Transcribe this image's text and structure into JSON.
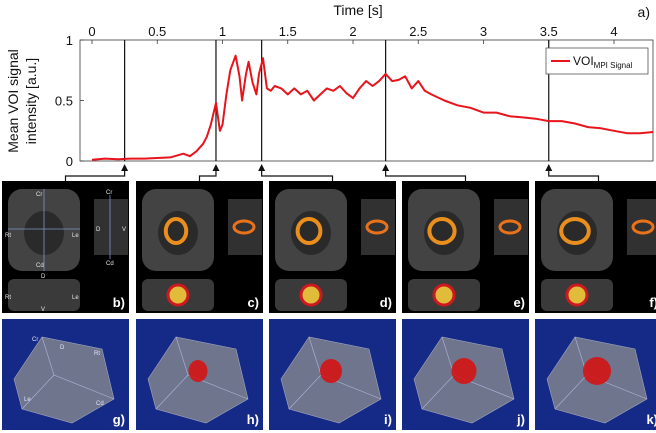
{
  "chart_data": {
    "type": "line",
    "panel_label": "a)",
    "xlabel": "Time [s]",
    "ylabel_lines": [
      "Mean VOI signal",
      "intensity [a.u.]"
    ],
    "xlim": [
      0,
      4.3
    ],
    "ylim": [
      0,
      1
    ],
    "x_ticks": [
      "0",
      "0.5",
      "1",
      "1.5",
      "2",
      "2.5",
      "3",
      "3.5",
      "4"
    ],
    "y_ticks": [
      "0",
      "0.5",
      "1"
    ],
    "legend": {
      "text": "VOI",
      "subscript": "MPI Signal",
      "position": "top-right"
    },
    "series": [
      {
        "name": "VOI MPI Signal",
        "color": "#e8141c",
        "x": [
          0,
          0.1,
          0.2,
          0.3,
          0.4,
          0.5,
          0.6,
          0.7,
          0.75,
          0.8,
          0.85,
          0.88,
          0.91,
          0.95,
          0.98,
          1.0,
          1.03,
          1.06,
          1.1,
          1.13,
          1.15,
          1.18,
          1.2,
          1.23,
          1.26,
          1.28,
          1.31,
          1.34,
          1.37,
          1.4,
          1.45,
          1.5,
          1.55,
          1.6,
          1.65,
          1.7,
          1.75,
          1.8,
          1.85,
          1.9,
          1.95,
          2.0,
          2.05,
          2.1,
          2.15,
          2.2,
          2.25,
          2.3,
          2.35,
          2.4,
          2.45,
          2.5,
          2.55,
          2.6,
          2.7,
          2.8,
          2.9,
          3.0,
          3.1,
          3.2,
          3.3,
          3.4,
          3.5,
          3.6,
          3.7,
          3.8,
          3.9,
          4.0,
          4.1,
          4.2,
          4.3
        ],
        "y": [
          0.01,
          0.02,
          0.015,
          0.02,
          0.02,
          0.025,
          0.03,
          0.06,
          0.04,
          0.08,
          0.14,
          0.2,
          0.3,
          0.48,
          0.25,
          0.3,
          0.55,
          0.75,
          0.87,
          0.7,
          0.5,
          0.72,
          0.82,
          0.65,
          0.55,
          0.72,
          0.85,
          0.6,
          0.58,
          0.62,
          0.6,
          0.55,
          0.6,
          0.55,
          0.58,
          0.5,
          0.55,
          0.6,
          0.58,
          0.62,
          0.56,
          0.52,
          0.6,
          0.66,
          0.62,
          0.66,
          0.72,
          0.66,
          0.67,
          0.7,
          0.6,
          0.66,
          0.58,
          0.55,
          0.5,
          0.46,
          0.44,
          0.4,
          0.4,
          0.37,
          0.36,
          0.35,
          0.33,
          0.33,
          0.31,
          0.28,
          0.27,
          0.25,
          0.23,
          0.23,
          0.24
        ]
      }
    ],
    "markers_x": [
      0.25,
      0.95,
      1.3,
      2.25,
      3.5
    ]
  },
  "mri_panels": [
    {
      "label": "b)",
      "anatomy": {
        "cr1": "Cr",
        "cd1": "Cd",
        "rt1": "Rt",
        "le1": "Le",
        "cr2": "Cr",
        "cd2": "Cd",
        "d2": "D",
        "v2": "V",
        "d3": "D",
        "v3": "V",
        "rt3": "Rt",
        "le3": "Le"
      }
    },
    {
      "label": "c)"
    },
    {
      "label": "d)"
    },
    {
      "label": "e)"
    },
    {
      "label": "f)"
    }
  ],
  "render_panels": [
    {
      "label": "g)",
      "anatomy": {
        "cr": "Cr",
        "d": "D",
        "rt": "Rt",
        "le": "Le",
        "cd": "Cd"
      }
    },
    {
      "label": "h)"
    },
    {
      "label": "i)"
    },
    {
      "label": "j)"
    },
    {
      "label": "k)"
    }
  ],
  "colors": {
    "panel_bg_mri": "#000000",
    "panel_bg_3d": "#152a86",
    "signal": "#e8141c"
  }
}
